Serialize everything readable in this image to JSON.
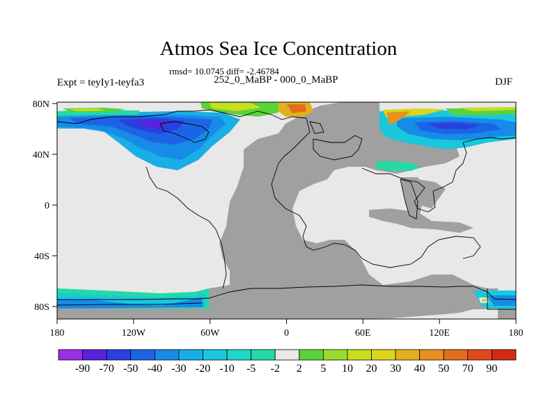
{
  "title": "Atmos Sea Ice Concentration",
  "stats": "rmsd= 10.0745 diff= -2.46784",
  "experiment": "Expt = teyIy1-teyfa3",
  "period": "252_0_MaBP - 000_0_MaBP",
  "season": "DJF",
  "map": {
    "lon_ticks": [
      "180",
      "120W",
      "60W",
      "0",
      "60E",
      "120E",
      "180"
    ],
    "lat_ticks": [
      "80N",
      "40N",
      "0",
      "40S",
      "80S"
    ]
  },
  "colorbar": {
    "labels": [
      "-90",
      "-70",
      "-50",
      "-40",
      "-30",
      "-20",
      "-10",
      "-5",
      "-2",
      "2",
      "5",
      "10",
      "20",
      "30",
      "40",
      "50",
      "70",
      "90"
    ],
    "colors": [
      "#9b2fe6",
      "#5a22dc",
      "#2a3fe0",
      "#1c64e6",
      "#178be8",
      "#1aaee6",
      "#19c8dd",
      "#1fd8c8",
      "#24d9a6",
      "#e8e8e8",
      "#5ad33a",
      "#9adc2e",
      "#c8de1e",
      "#dcd51e",
      "#e2b01e",
      "#e89120",
      "#e46c1c",
      "#e04a1a",
      "#d42a14"
    ]
  },
  "colors": {
    "land": "#a0a0a0",
    "neutral": "#e8e8e8"
  }
}
